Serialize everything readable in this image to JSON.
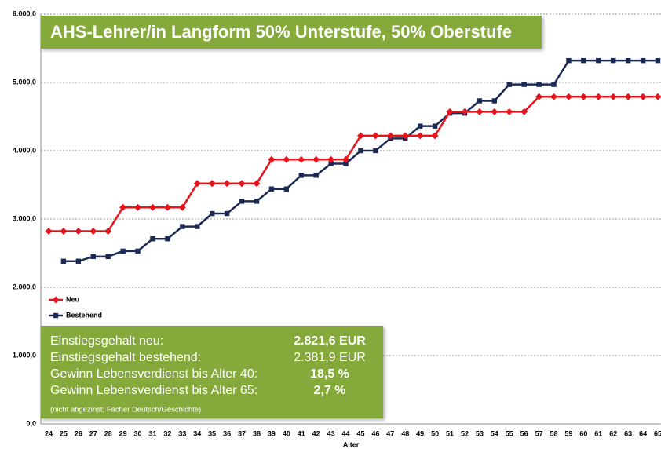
{
  "chart_data": {
    "type": "line",
    "title": "AHS-Lehrer/in Langform 50% Unterstufe, 50% Oberstufe",
    "x_label": "Alter",
    "categories": [
      "24",
      "25",
      "26",
      "27",
      "28",
      "29",
      "30",
      "31",
      "32",
      "33",
      "34",
      "35",
      "36",
      "37",
      "38",
      "39",
      "40",
      "41",
      "42",
      "43",
      "44",
      "45",
      "46",
      "47",
      "48",
      "49",
      "50",
      "51",
      "52",
      "53",
      "54",
      "55",
      "56",
      "57",
      "58",
      "59",
      "60",
      "61",
      "62",
      "63",
      "64",
      "65"
    ],
    "series": [
      {
        "name": "Neu",
        "color": "#e8141c",
        "marker": "diamond",
        "values": [
          2821.6,
          2821.6,
          2821.6,
          2821.6,
          2821.6,
          3170,
          3170,
          3170,
          3170,
          3170,
          3520,
          3520,
          3520,
          3520,
          3520,
          3870,
          3870,
          3870,
          3870,
          3870,
          3870,
          4220,
          4220,
          4220,
          4220,
          4220,
          4220,
          4570,
          4570,
          4570,
          4570,
          4570,
          4570,
          4790,
          4790,
          4790,
          4790,
          4790,
          4790,
          4790,
          4790,
          4790
        ]
      },
      {
        "name": "Bestehend",
        "color": "#1a2a55",
        "marker": "square",
        "values": [
          null,
          2381.9,
          2381.9,
          2450,
          2450,
          2530,
          2530,
          2710,
          2710,
          2890,
          2890,
          3080,
          3080,
          3260,
          3260,
          3440,
          3440,
          3640,
          3640,
          3810,
          3810,
          4000,
          4000,
          4180,
          4180,
          4360,
          4360,
          4550,
          4550,
          4730,
          4730,
          4970,
          4970,
          4970,
          4970,
          5320,
          5320,
          5320,
          5320,
          5320,
          5320,
          5320
        ]
      }
    ],
    "ylim": [
      0,
      6000
    ],
    "yticks": [
      {
        "value": 0,
        "label": "0,0"
      },
      {
        "value": 1000,
        "label": "1.000,0"
      },
      {
        "value": 2000,
        "label": "2.000,0"
      },
      {
        "value": 3000,
        "label": "3.000,0"
      },
      {
        "value": 4000,
        "label": "4.000,0"
      },
      {
        "value": 5000,
        "label": "5.000,0"
      },
      {
        "value": 6000,
        "label": "6.000,0"
      }
    ],
    "grid": true,
    "legend": "left",
    "info_box": {
      "rows": [
        {
          "label": "Einstiegsgehalt neu:",
          "value": "2.821,6 EUR"
        },
        {
          "label": "Einstiegsgehalt bestehend:",
          "value": "2.381,9 EUR"
        },
        {
          "label": "Gewinn Lebensverdienst bis Alter 40:",
          "value": "18,5 %"
        },
        {
          "label": "Gewinn Lebensverdienst bis Alter 65:",
          "value": "2,7 %"
        }
      ],
      "note": "(nicht abgezinst; Fächer Deutsch/Geschichte)"
    }
  }
}
